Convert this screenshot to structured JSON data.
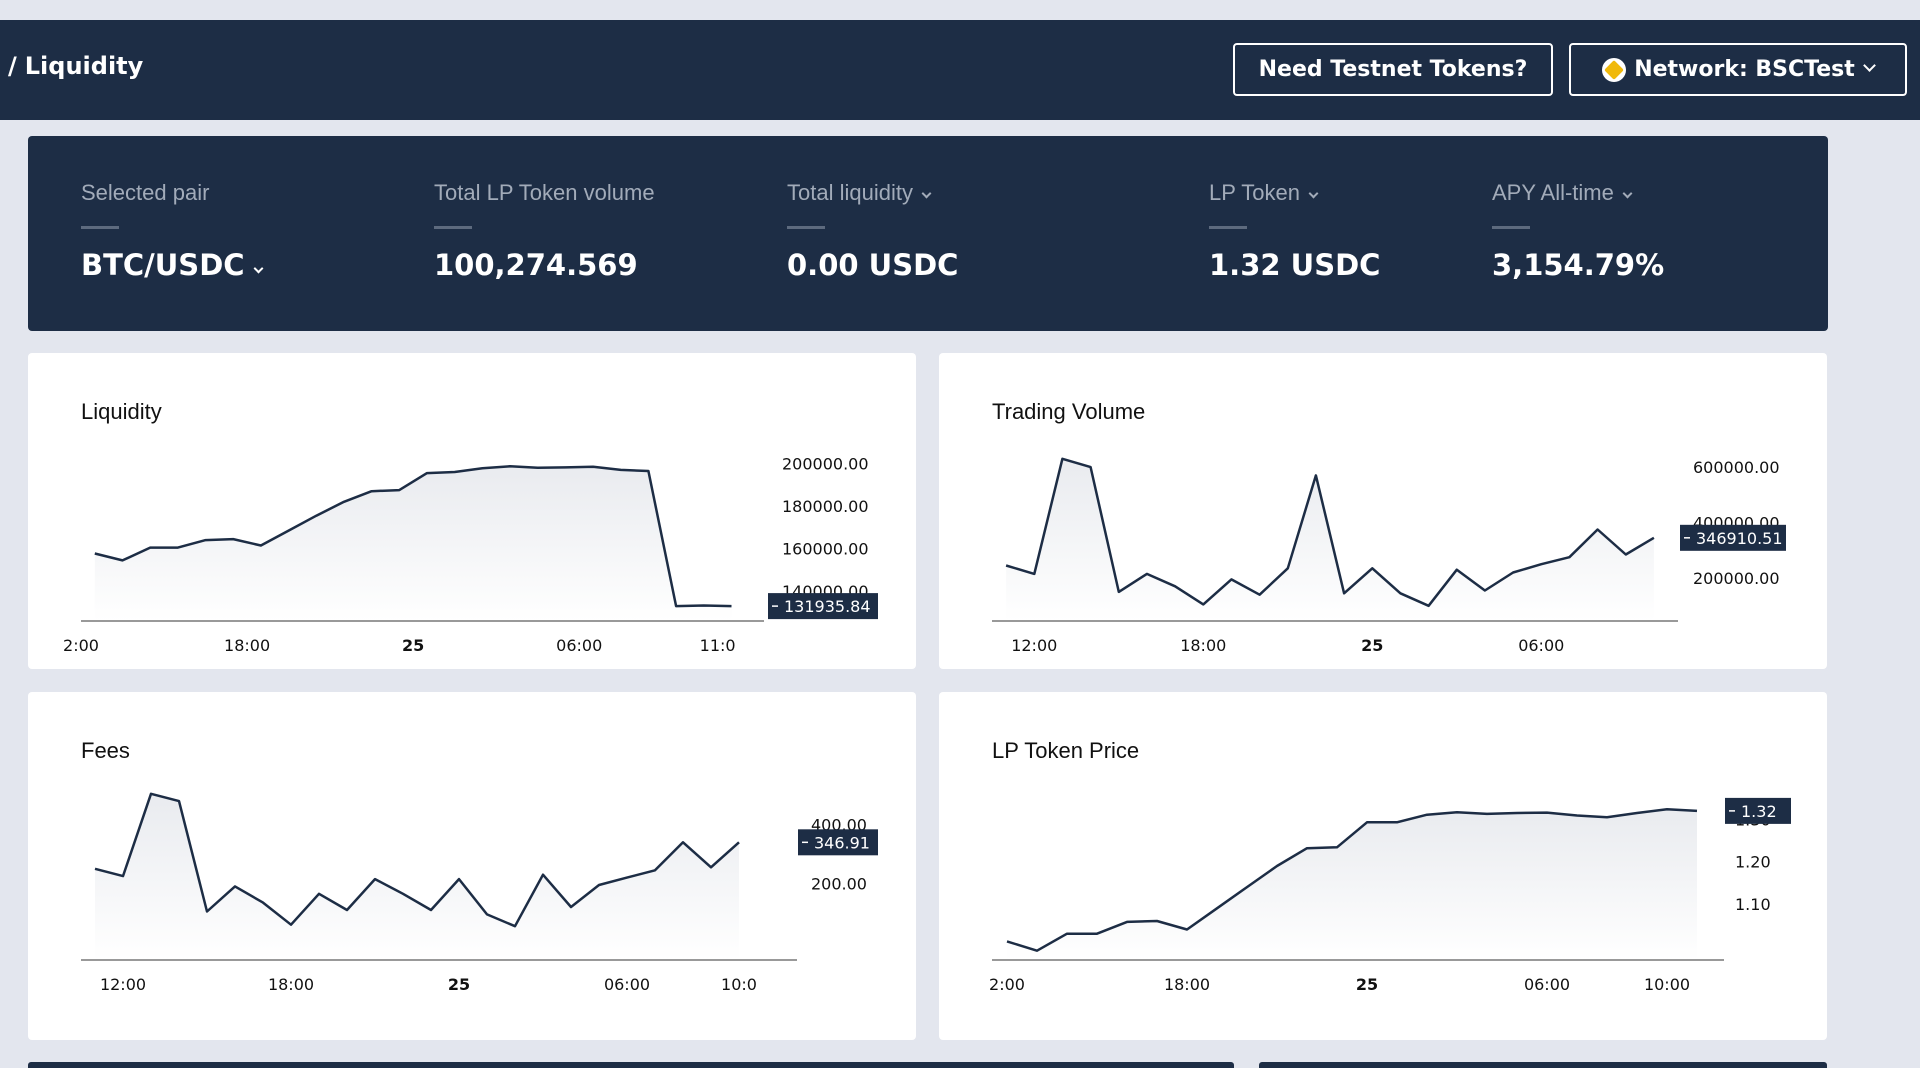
{
  "header": {
    "breadcrumb_sep": "/",
    "breadcrumb_current": "Liquidity",
    "testnet_button": "Need Testnet Tokens?",
    "network_button": "Network: BSCTest",
    "network_icon": "bnb-coin-icon"
  },
  "stats": {
    "selected_pair": {
      "label": "Selected pair",
      "value": "BTC/USDC"
    },
    "total_lp_volume": {
      "label": "Total LP Token volume",
      "value": "100,274.569"
    },
    "total_liquidity": {
      "label": "Total liquidity",
      "value": "0.00 USDC"
    },
    "lp_token": {
      "label": "LP Token",
      "value": "1.32 USDC"
    },
    "apy": {
      "label": "APY All-time",
      "value": "3,154.79%"
    }
  },
  "colors": {
    "navy": "#1d2d45",
    "background": "#e3e6ee",
    "card": "#ffffff"
  },
  "chart_data": [
    {
      "id": "liquidity",
      "type": "area",
      "title": "Liquidity",
      "ylim": [
        126000,
        212000
      ],
      "yticks": [
        {
          "v": 200000,
          "label": "200000.00"
        },
        {
          "v": 180000,
          "label": "180000.00"
        },
        {
          "v": 160000,
          "label": "160000.00"
        },
        {
          "v": 140000,
          "label": "140000.00"
        }
      ],
      "xlim": [
        0,
        25
      ],
      "xticks": [
        {
          "x": 0,
          "label": "2:00",
          "bold": false
        },
        {
          "x": 6,
          "label": "18:00",
          "bold": false
        },
        {
          "x": 12,
          "label": "25",
          "bold": true
        },
        {
          "x": 18,
          "label": "06:00",
          "bold": false
        },
        {
          "x": 23,
          "label": "11:0",
          "bold": false
        }
      ],
      "x": [
        0.5,
        1.5,
        2.5,
        3.5,
        4.5,
        5.5,
        6.5,
        7.5,
        8.5,
        9.5,
        10.5,
        11.5,
        12.5,
        13.5,
        14.5,
        15.5,
        16.5,
        17.5,
        18.5,
        19.5,
        20.5,
        21.5,
        22.5,
        23.5
      ],
      "values": [
        157700,
        154500,
        160500,
        160500,
        164000,
        164500,
        161500,
        168500,
        175500,
        182000,
        187000,
        187500,
        195500,
        196000,
        197800,
        198700,
        198000,
        198200,
        198500,
        197000,
        196500,
        133000,
        133300,
        133000
      ],
      "last_value_label": "131935.84"
    },
    {
      "id": "trading_volume",
      "type": "area",
      "title": "Trading Volume",
      "ylim": [
        45000,
        705000
      ],
      "yticks": [
        {
          "v": 600000,
          "label": "600000.00"
        },
        {
          "v": 400000,
          "label": "400000.00"
        },
        {
          "v": 200000,
          "label": "200000.00"
        }
      ],
      "xlim": [
        0,
        24
      ],
      "xticks": [
        {
          "x": 1.5,
          "label": "12:00",
          "bold": false
        },
        {
          "x": 7.5,
          "label": "18:00",
          "bold": false
        },
        {
          "x": 13.5,
          "label": "25",
          "bold": true
        },
        {
          "x": 19.5,
          "label": "06:00",
          "bold": false
        }
      ],
      "x": [
        0.5,
        1.5,
        2.5,
        3.5,
        4.5,
        5.5,
        6.5,
        7.5,
        8.5,
        9.5,
        10.5,
        11.5,
        12.5,
        13.5,
        14.5,
        15.5,
        16.5,
        17.5,
        18.5,
        19.5,
        20.5,
        21.5,
        22.5,
        23.5
      ],
      "values": [
        245000,
        215000,
        630000,
        600000,
        150000,
        215000,
        170000,
        105000,
        195000,
        140000,
        235000,
        570000,
        145000,
        235000,
        145000,
        100000,
        230000,
        155000,
        220000,
        250000,
        275000,
        375000,
        285000,
        345000
      ],
      "last_value_label": "346910.51"
    },
    {
      "id": "fees",
      "type": "area",
      "title": "Fees",
      "ylim": [
        -60,
        562
      ],
      "yticks": [
        {
          "v": 400,
          "label": "400.00"
        },
        {
          "v": 200,
          "label": "200.00"
        }
      ],
      "xlim": [
        0,
        24
      ],
      "xticks": [
        {
          "x": 1.5,
          "label": "12:00",
          "bold": false
        },
        {
          "x": 7.5,
          "label": "18:00",
          "bold": false
        },
        {
          "x": 13.5,
          "label": "25",
          "bold": true
        },
        {
          "x": 19.5,
          "label": "06:00",
          "bold": false
        },
        {
          "x": 23.5,
          "label": "10:0",
          "bold": false
        }
      ],
      "x": [
        0.5,
        1.5,
        2.5,
        3.5,
        4.5,
        5.5,
        6.5,
        7.5,
        8.5,
        9.5,
        10.5,
        11.5,
        12.5,
        13.5,
        14.5,
        15.5,
        16.5,
        17.5,
        18.5,
        19.5,
        20.5,
        21.5,
        22.5,
        23.5
      ],
      "values": [
        250,
        225,
        505,
        480,
        105,
        190,
        135,
        60,
        165,
        110,
        215,
        165,
        110,
        215,
        95,
        55,
        230,
        120,
        195,
        220,
        245,
        340,
        255,
        340
      ],
      "last_value_label": "346.91"
    },
    {
      "id": "lp_token_price",
      "type": "area",
      "title": "LP Token Price",
      "ylim": [
        0.968,
        1.4
      ],
      "yticks": [
        {
          "v": 1.3,
          "label": "1.30"
        },
        {
          "v": 1.2,
          "label": "1.20"
        },
        {
          "v": 1.1,
          "label": "1.10"
        }
      ],
      "xlim": [
        0,
        24
      ],
      "xticks": [
        {
          "x": 0.5,
          "label": "2:00",
          "bold": false
        },
        {
          "x": 6.5,
          "label": "18:00",
          "bold": false
        },
        {
          "x": 12.5,
          "label": "25",
          "bold": true
        },
        {
          "x": 18.5,
          "label": "06:00",
          "bold": false
        },
        {
          "x": 22.5,
          "label": "10:00",
          "bold": false
        }
      ],
      "x": [
        0.5,
        1.5,
        2.5,
        3.5,
        4.5,
        5.5,
        6.5,
        7.5,
        8.5,
        9.5,
        10.5,
        11.5,
        12.5,
        13.5,
        14.5,
        15.5,
        16.5,
        17.5,
        18.5,
        19.5,
        20.5,
        21.5,
        22.5,
        23.5
      ],
      "values": [
        1.012,
        0.99,
        1.03,
        1.03,
        1.058,
        1.06,
        1.04,
        1.09,
        1.14,
        1.19,
        1.232,
        1.234,
        1.293,
        1.293,
        1.311,
        1.317,
        1.313,
        1.315,
        1.316,
        1.309,
        1.305,
        1.315,
        1.324,
        1.32
      ],
      "last_value_label": "1.32"
    }
  ]
}
